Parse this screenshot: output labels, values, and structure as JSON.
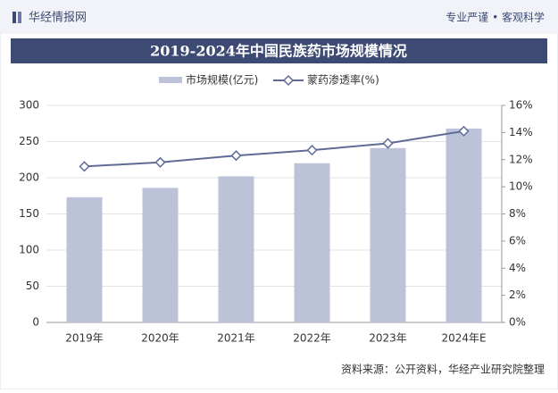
{
  "header": {
    "brand": "华经情报网",
    "slogan": "专业严谨 • 客观科学"
  },
  "chart_data": {
    "type": "bar-line",
    "title": "2019-2024年中国民族药市场规模情况",
    "categories": [
      "2019年",
      "2020年",
      "2021年",
      "2022年",
      "2023年",
      "2024年E"
    ],
    "series": [
      {
        "name": "市场规模(亿元)",
        "color": "#bcc3d8",
        "values": [
          173,
          186,
          202,
          220,
          241,
          268
        ]
      },
      {
        "name": "蒙药渗透率(%)",
        "color": "#5f6b95",
        "axis": "y2",
        "values": [
          11.5,
          11.8,
          12.3,
          12.7,
          13.2,
          14.1
        ]
      }
    ],
    "ylim": [
      0,
      300
    ],
    "yticks": [
      0,
      50,
      100,
      150,
      200,
      250,
      300
    ],
    "y2lim": [
      0,
      16
    ],
    "y2ticks": [
      {
        "value": 0,
        "label": "0%"
      },
      {
        "value": 2,
        "label": "2%"
      },
      {
        "value": 4,
        "label": "4%"
      },
      {
        "value": 6,
        "label": "6%"
      },
      {
        "value": 8,
        "label": "8%"
      },
      {
        "value": 10,
        "label": "10%"
      },
      {
        "value": 12,
        "label": "12%"
      },
      {
        "value": 14,
        "label": "14%"
      },
      {
        "value": 16,
        "label": "16%"
      }
    ],
    "grid": true
  },
  "footer": {
    "source": "资料来源：公开资料，华经产业研究院整理"
  }
}
